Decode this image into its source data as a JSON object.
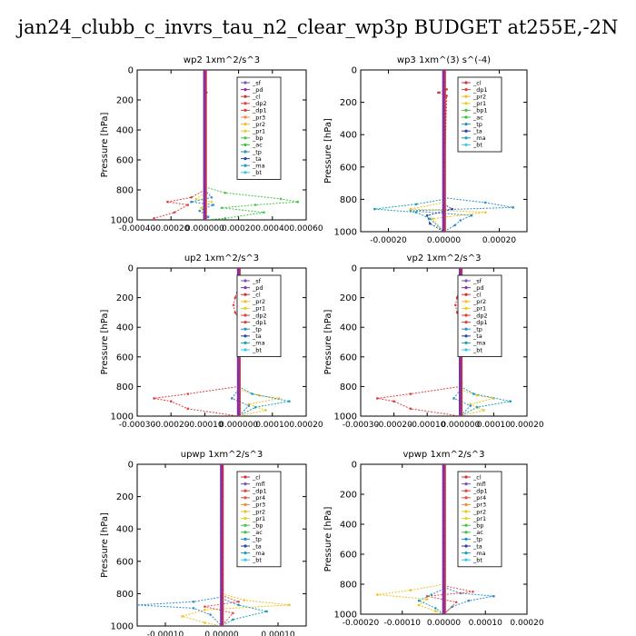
{
  "title": "jan24_clubb_c_invrs_tau_n2_clear_wp3p  BUDGET at255E,-2N",
  "term_colors": {
    "_sf": "#7a4fbf",
    "_pd": "#8b2fa8",
    "_cl": "#d03232",
    "_dp2": "#e83a3a",
    "_dp1": "#e04040",
    "_pr3": "#f08a3a",
    "_pr2": "#f2c024",
    "_pr1": "#e8d020",
    "_pr4": "#e84a4a",
    "_mfl": "#7a4fbf",
    "_bp": "#47c447",
    "_bp1": "#47c447",
    "_ac": "#3ac43a",
    "_tp": "#2f8fc8",
    "_ta": "#2a3fa8",
    "_ma": "#1aa0b8",
    "_bt": "#39c8e8"
  },
  "chart_data": [
    {
      "type": "line",
      "title": "wp2   1xm^2/s^3",
      "ylabel": "Pressure  [hPa]",
      "ylim": [
        1000,
        0
      ],
      "yticks": [
        0,
        200,
        400,
        600,
        800,
        1000
      ],
      "xlim": [
        -0.0004,
        0.0006
      ],
      "xticks": [
        -0.0004,
        -0.0002,
        0.0,
        0.0002,
        0.0004,
        0.0006
      ],
      "xtick_labels": [
        "-0.00040",
        "-0.00020",
        "0.000000",
        "0.00020",
        "0.00040",
        "0.00060"
      ],
      "legend": [
        "_sf",
        "_pd",
        "_cl",
        "_dp2",
        "_dp1",
        "_pr3",
        "_pr2",
        "_pr1",
        "_bp",
        "_ac",
        "_tp",
        "_ta",
        "_ma",
        "_bt"
      ],
      "series": [
        {
          "name": "_bp",
          "pressure": [
            780,
            820,
            860,
            880,
            900,
            920,
            950,
            990,
            1000
          ],
          "values": [
            0,
            0.00012,
            0.00045,
            0.00055,
            0.0003,
            0.0001,
            0.00035,
            0.00012,
            0
          ]
        },
        {
          "name": "_dp1",
          "pressure": [
            800,
            850,
            880,
            900,
            950,
            990,
            1000
          ],
          "values": [
            0,
            -8e-05,
            -0.00022,
            -0.0001,
            -0.00018,
            -0.0003,
            -0.0003
          ]
        },
        {
          "name": "_tp",
          "pressure": [
            800,
            850,
            880,
            900,
            940,
            980,
            1000
          ],
          "values": [
            0,
            4e-05,
            -8e-05,
            5e-05,
            -3e-05,
            2e-05,
            0
          ]
        },
        {
          "name": "_pr1",
          "pressure": [
            820,
            860,
            880,
            920,
            1000
          ],
          "values": [
            0,
            -5e-05,
            4e-05,
            -2e-05,
            0
          ]
        },
        {
          "name": "_cl",
          "pressure": [
            150,
            200,
            800,
            1000
          ],
          "values": [
            1e-05,
            0,
            0,
            0
          ]
        }
      ]
    },
    {
      "type": "line",
      "title": "wp3   1xm^(3) s^(-4)",
      "ylabel": "Pressure  [hPa]",
      "ylim": [
        1000,
        0
      ],
      "yticks": [
        0,
        200,
        400,
        600,
        800,
        1000
      ],
      "xlim": [
        -0.0003,
        0.0003
      ],
      "xticks": [
        -0.0002,
        0.0,
        0.0002
      ],
      "xtick_labels": [
        "-0.00020",
        "0.00000",
        "0.00020"
      ],
      "legend": [
        "_cl",
        "_dp1",
        "_pr2",
        "_pr1",
        "_bp1",
        "_ac",
        "_tp",
        "_ta",
        "_ma",
        "_bt"
      ],
      "series": [
        {
          "name": "_tp",
          "pressure": [
            790,
            820,
            850,
            870,
            900,
            930,
            960,
            1000
          ],
          "values": [
            0,
            0.00015,
            0.00025,
            -0.00012,
            0.0001,
            6e-05,
            4e-05,
            0
          ]
        },
        {
          "name": "_ma",
          "pressure": [
            800,
            830,
            860,
            880,
            920,
            1000
          ],
          "values": [
            0,
            -0.0001,
            -0.00025,
            -0.0001,
            -5e-05,
            0
          ]
        },
        {
          "name": "_pr2",
          "pressure": [
            820,
            860,
            880,
            920,
            1000
          ],
          "values": [
            0,
            -0.00012,
            0.00015,
            -4e-05,
            0
          ]
        },
        {
          "name": "_ta",
          "pressure": [
            830,
            860,
            900,
            950,
            1000
          ],
          "values": [
            0,
            3e-05,
            -6e-05,
            -5e-05,
            0
          ]
        },
        {
          "name": "_cl",
          "pressure": [
            120,
            140,
            160,
            800,
            1000
          ],
          "values": [
            1e-05,
            -2e-05,
            1e-05,
            0,
            0
          ]
        }
      ]
    },
    {
      "type": "line",
      "title": "up2   1xm^2/s^3",
      "ylabel": "Pressure  [hPa]",
      "ylim": [
        1000,
        0
      ],
      "yticks": [
        0,
        200,
        400,
        600,
        800,
        1000
      ],
      "xlim": [
        -0.0003,
        0.0002
      ],
      "xticks": [
        -0.0003,
        -0.0002,
        -0.0001,
        0.0,
        0.0001,
        0.0002
      ],
      "xtick_labels": [
        "-0.00030",
        "-0.00020",
        "-0.00010",
        "0.000000",
        "0.00010",
        "0.00020"
      ],
      "legend": [
        "_sf",
        "_pd",
        "_cl",
        "_pr2",
        "_pr1",
        "_dp2",
        "_dp1",
        "_tp",
        "_ta",
        "_ma",
        "_bt"
      ],
      "series": [
        {
          "name": "_dp1",
          "pressure": [
            120,
            200,
            250,
            300,
            350,
            800,
            850,
            880,
            900,
            950,
            1000
          ],
          "values": [
            0,
            -1e-05,
            -1.5e-05,
            -1e-05,
            0,
            0,
            -0.00015,
            -0.00025,
            -0.0002,
            -0.00015,
            0
          ]
        },
        {
          "name": "_pr2",
          "pressure": [
            820,
            860,
            880,
            920,
            960,
            1000
          ],
          "values": [
            0,
            6e-05,
            0.00012,
            3e-05,
            8e-05,
            0
          ]
        },
        {
          "name": "_ma",
          "pressure": [
            800,
            850,
            900,
            940,
            1000
          ],
          "values": [
            0,
            4e-05,
            0.00015,
            5e-05,
            0
          ]
        },
        {
          "name": "_tp",
          "pressure": [
            820,
            880,
            930,
            1000
          ],
          "values": [
            0,
            -2e-05,
            3e-05,
            0
          ]
        }
      ]
    },
    {
      "type": "line",
      "title": "vp2   1xm^2/s^3",
      "ylabel": "Pressure  [hPa]",
      "ylim": [
        1000,
        0
      ],
      "yticks": [
        0,
        200,
        400,
        600,
        800,
        1000
      ],
      "xlim": [
        -0.0003,
        0.0002
      ],
      "xticks": [
        -0.0003,
        -0.0002,
        -0.0001,
        0.0,
        0.0001,
        0.0002
      ],
      "xtick_labels": [
        "-0.00030",
        "-0.00020",
        "-0.00010",
        "0.000000",
        "0.00010",
        "0.00020"
      ],
      "legend": [
        "_sf",
        "_pd",
        "_cl",
        "_pr2",
        "_pr1",
        "_dp2",
        "_dp1",
        "_tp",
        "_ta",
        "_ma",
        "_bt"
      ],
      "series": [
        {
          "name": "_dp1",
          "pressure": [
            120,
            200,
            250,
            300,
            350,
            800,
            850,
            880,
            900,
            950,
            1000
          ],
          "values": [
            0,
            -1e-05,
            -1.5e-05,
            -1e-05,
            0,
            0,
            -0.00015,
            -0.00025,
            -0.0002,
            -0.00015,
            0
          ]
        },
        {
          "name": "_pr2",
          "pressure": [
            820,
            860,
            880,
            920,
            960,
            1000
          ],
          "values": [
            0,
            5e-05,
            0.0001,
            3e-05,
            7e-05,
            0
          ]
        },
        {
          "name": "_ma",
          "pressure": [
            800,
            850,
            900,
            940,
            1000
          ],
          "values": [
            0,
            4e-05,
            0.00015,
            5e-05,
            0
          ]
        },
        {
          "name": "_tp",
          "pressure": [
            820,
            880,
            930,
            1000
          ],
          "values": [
            0,
            -2e-05,
            3e-05,
            0
          ]
        }
      ]
    },
    {
      "type": "line",
      "title": "upwp   1xm^2/s^3",
      "ylabel": "Pressure  [hPa]",
      "ylim": [
        1000,
        0
      ],
      "yticks": [
        0,
        200,
        400,
        600,
        800,
        1000
      ],
      "xlim": [
        -0.00015,
        0.00015
      ],
      "xticks": [
        -0.0001,
        0.0,
        0.0001
      ],
      "xtick_labels": [
        "-0.00010",
        "0.00000",
        "0.00010"
      ],
      "legend": [
        "_cl",
        "_mfl",
        "_dp1",
        "_pr4",
        "_pr3",
        "_pr2",
        "_pr1",
        "_bp",
        "_ac",
        "_tp",
        "_ta",
        "_ma",
        "_bt"
      ],
      "series": [
        {
          "name": "_pr2",
          "pressure": [
            800,
            840,
            870,
            900,
            940,
            980,
            1000
          ],
          "values": [
            0,
            4e-05,
            0.00012,
            -3e-05,
            -7e-05,
            -3e-05,
            0
          ]
        },
        {
          "name": "_tp",
          "pressure": [
            820,
            850,
            870,
            890,
            930,
            1000
          ],
          "values": [
            0,
            -5e-05,
            -0.00015,
            -5e-05,
            -2e-05,
            0
          ]
        },
        {
          "name": "_pr4",
          "pressure": [
            810,
            850,
            880,
            920,
            1000
          ],
          "values": [
            0,
            3e-05,
            -3e-05,
            2e-05,
            0
          ]
        },
        {
          "name": "_ma",
          "pressure": [
            830,
            870,
            910,
            960,
            1000
          ],
          "values": [
            0,
            3e-05,
            8e-05,
            2e-05,
            0
          ]
        }
      ]
    },
    {
      "type": "line",
      "title": "vpwp   1xm^2/s^3",
      "ylabel": "Pressure  [hPa]",
      "ylim": [
        1000,
        0
      ],
      "yticks": [
        0,
        200,
        400,
        600,
        800,
        1000
      ],
      "xlim": [
        -0.0002,
        0.0002
      ],
      "xticks": [
        -0.0002,
        -0.0001,
        0.0,
        0.0001,
        0.0002
      ],
      "xtick_labels": [
        "-0.00020",
        "-0.00010",
        "0.00000",
        "0.00010",
        "0.00020"
      ],
      "legend": [
        "_cl",
        "_mfl",
        "_dp1",
        "_pr4",
        "_pr3",
        "_pr2",
        "_pr1",
        "_bp",
        "_ac",
        "_tp",
        "_ta",
        "_ma",
        "_bt"
      ],
      "series": [
        {
          "name": "_pr2",
          "pressure": [
            800,
            840,
            870,
            900,
            940,
            980,
            1000
          ],
          "values": [
            0,
            -8e-05,
            -0.00016,
            -4e-05,
            -6e-05,
            -2e-05,
            0
          ]
        },
        {
          "name": "_tp",
          "pressure": [
            820,
            860,
            880,
            910,
            950,
            1000
          ],
          "values": [
            0,
            4e-05,
            0.00012,
            6e-05,
            2e-05,
            0
          ]
        },
        {
          "name": "_pr4",
          "pressure": [
            810,
            850,
            880,
            920,
            1000
          ],
          "values": [
            0,
            7e-05,
            -4e-05,
            3e-05,
            0
          ]
        },
        {
          "name": "_ma",
          "pressure": [
            830,
            870,
            910,
            960,
            1000
          ],
          "values": [
            0,
            -3e-05,
            -6e-05,
            -2e-05,
            0
          ]
        }
      ]
    }
  ]
}
